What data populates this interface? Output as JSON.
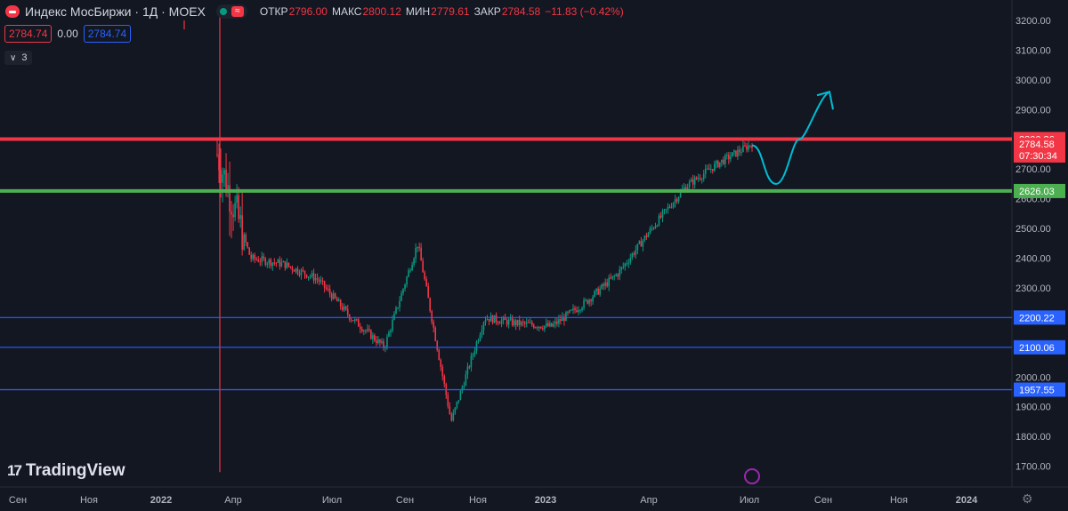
{
  "header": {
    "title": "Индекс МосБиржи · 1Д · MOEX",
    "ohlc": [
      {
        "label": "ОТКР",
        "value": "2796.00"
      },
      {
        "label": "МАКС",
        "value": "2800.12"
      },
      {
        "label": "МИН",
        "value": "2779.61"
      },
      {
        "label": "ЗАКР",
        "value": "2784.58"
      }
    ],
    "change": "−11.83 (−0.42%)",
    "bid": "2784.74",
    "spread": "0.00",
    "ask": "2784.74",
    "indicators_count": "3"
  },
  "branding": {
    "logo_text": "TradingView"
  },
  "colors": {
    "background": "#131722",
    "up": "#089981",
    "down": "#f23645",
    "resistance": "#f23645",
    "support": "#4caf50",
    "level": "#2962ff",
    "drawing": "#00bcd4"
  },
  "chart_data": {
    "type": "candlestick",
    "y_axis": {
      "ticks": [
        "3200.00",
        "3100.00",
        "3000.00",
        "2900.00",
        "2800.00",
        "2700.00",
        "2600.00",
        "2500.00",
        "2400.00",
        "2300.00",
        "2200.00",
        "2100.00",
        "2000.00",
        "1900.00",
        "1800.00",
        "1700.00"
      ],
      "range": [
        1650,
        3250
      ]
    },
    "x_axis": {
      "ticks": [
        "Сен",
        "Ноя",
        "2022",
        "Апр",
        "Июл",
        "Сен",
        "Ноя",
        "2023",
        "Апр",
        "Июл",
        "Сен",
        "Ноя",
        "2024"
      ]
    },
    "horizontal_levels": [
      {
        "value": "2800.86",
        "color": "#f23645",
        "style": "thick"
      },
      {
        "value": "2626.03",
        "color": "#4caf50",
        "style": "thick"
      },
      {
        "value": "2200.22",
        "color": "#2962ff",
        "style": "thin"
      },
      {
        "value": "2100.06",
        "color": "#2962ff",
        "style": "thin"
      },
      {
        "value": "1957.55",
        "color": "#2962ff",
        "style": "thin"
      }
    ],
    "last_price": {
      "value": "2784.58",
      "countdown": "07:30:34"
    },
    "price_path": [
      [
        "Мар",
        2750
      ],
      [
        "Апр",
        2400
      ],
      [
        "Май",
        2380
      ],
      [
        "Июн",
        2330
      ],
      [
        "Июл",
        2200
      ],
      [
        "Авг",
        2100
      ],
      [
        "Сен",
        2450
      ],
      [
        "Окт",
        1850
      ],
      [
        "Ноя",
        2200
      ],
      [
        "Дек",
        2180
      ],
      [
        "2023",
        2170
      ],
      [
        "Фев",
        2250
      ],
      [
        "Мар",
        2350
      ],
      [
        "Апр",
        2500
      ],
      [
        "Май",
        2640
      ],
      [
        "Июн",
        2720
      ],
      [
        "Июл",
        2785
      ]
    ],
    "forecast_drawing": [
      2780,
      2650,
      2800,
      2960
    ]
  }
}
